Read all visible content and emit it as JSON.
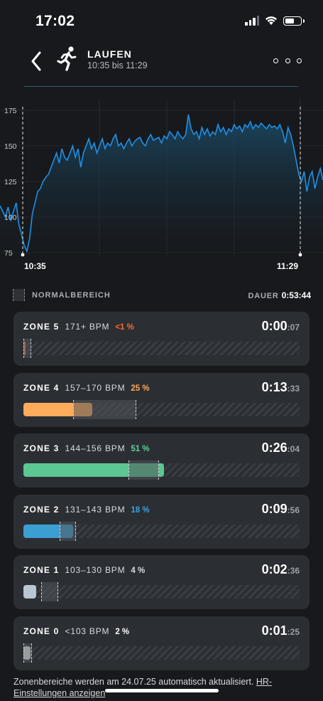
{
  "status": {
    "time": "17:02"
  },
  "header": {
    "title": "LAUFEN",
    "subtitle": "10:35 bis 11:29",
    "back_icon": "chevron-left-icon",
    "activity_icon": "running-icon",
    "more_icon": "more-icon"
  },
  "chart": {
    "y_ticks": [
      "175",
      "150",
      "125",
      "100",
      "75"
    ],
    "start_label": "10:35",
    "end_label": "11:29",
    "line_color": "#1e90e8"
  },
  "chart_data": {
    "type": "line",
    "y_ticks": [
      175,
      150,
      125,
      100,
      75
    ],
    "x_labels": [
      "10:35",
      "11:29"
    ],
    "series": [
      {
        "values": [
          108,
          104,
          100,
          107,
          98,
          104,
          110,
          95,
          88,
          80,
          76,
          85,
          102,
          110,
          118,
          120,
          125,
          128,
          130,
          135,
          140,
          145,
          138,
          148,
          142,
          140,
          145,
          150,
          142,
          148,
          135,
          145,
          150,
          155,
          148,
          152,
          145,
          150,
          155,
          148,
          152,
          150,
          155,
          158,
          150,
          152,
          148,
          152,
          155,
          150,
          153,
          155,
          156,
          152,
          150,
          155,
          158,
          154,
          155,
          156,
          152,
          157,
          155,
          160,
          158,
          155,
          160,
          157,
          155,
          158,
          172,
          162,
          158,
          160,
          155,
          163,
          158,
          162,
          157,
          160,
          158,
          165,
          160,
          163,
          158,
          162,
          160,
          165,
          162,
          164,
          160,
          165,
          163,
          167,
          162,
          165,
          163,
          166,
          164,
          162,
          165,
          163,
          164,
          162,
          165,
          160,
          152,
          163,
          158,
          150,
          140,
          130,
          125,
          132,
          118,
          128,
          132,
          120,
          128,
          134,
          126
        ]
      }
    ]
  },
  "legend": {
    "normal_label": "NORMALBEREICH",
    "duration_label": "DAUER",
    "duration_value": "0:53:44"
  },
  "zones": [
    {
      "name": "ZONE 5",
      "bpm": "171+ BPM",
      "pct": "<1 %",
      "pct_color": "#ff6a2a",
      "time_main": "0:00",
      "time_sec": ":07",
      "fill": 0.005,
      "color": "#ff8a3d",
      "normal": [
        0.0,
        0.01
      ]
    },
    {
      "name": "ZONE 4",
      "bpm": "157–170 BPM",
      "pct": "25 %",
      "pct_color": "#ffab5c",
      "time_main": "0:13",
      "time_sec": ":33",
      "fill": 0.25,
      "color": "#ffab5c",
      "normal": [
        0.18,
        0.41
      ]
    },
    {
      "name": "ZONE 3",
      "bpm": "144–156 BPM",
      "pct": "51 %",
      "pct_color": "#5ed39a",
      "time_main": "0:26",
      "time_sec": ":04",
      "fill": 0.51,
      "color": "#5cc792",
      "normal": [
        0.38,
        0.49
      ]
    },
    {
      "name": "ZONE 2",
      "bpm": "131–143 BPM",
      "pct": "18 %",
      "pct_color": "#3aa4e0",
      "time_main": "0:09",
      "time_sec": ":56",
      "fill": 0.18,
      "color": "#3c9fd4",
      "normal": [
        0.13,
        0.19
      ]
    },
    {
      "name": "ZONE 1",
      "bpm": "103–130 BPM",
      "pct": "4 %",
      "pct_color": "#d6dde6",
      "time_main": "0:02",
      "time_sec": ":36",
      "fill": 0.045,
      "color": "#b9c7d4",
      "normal": [
        0.065,
        0.125
      ]
    },
    {
      "name": "ZONE 0",
      "bpm": "<103 BPM",
      "pct": "2 %",
      "pct_color": "#ffffff",
      "time_main": "0:01",
      "time_sec": ":25",
      "fill": 0.025,
      "color": "#f2f3f4",
      "normal": [
        0.0,
        0.03
      ]
    }
  ],
  "footer": {
    "text": "Zonenbereiche werden am 24.07.25 automatisch aktualisiert. ",
    "link": "HR-Einstellungen anzeigen"
  }
}
